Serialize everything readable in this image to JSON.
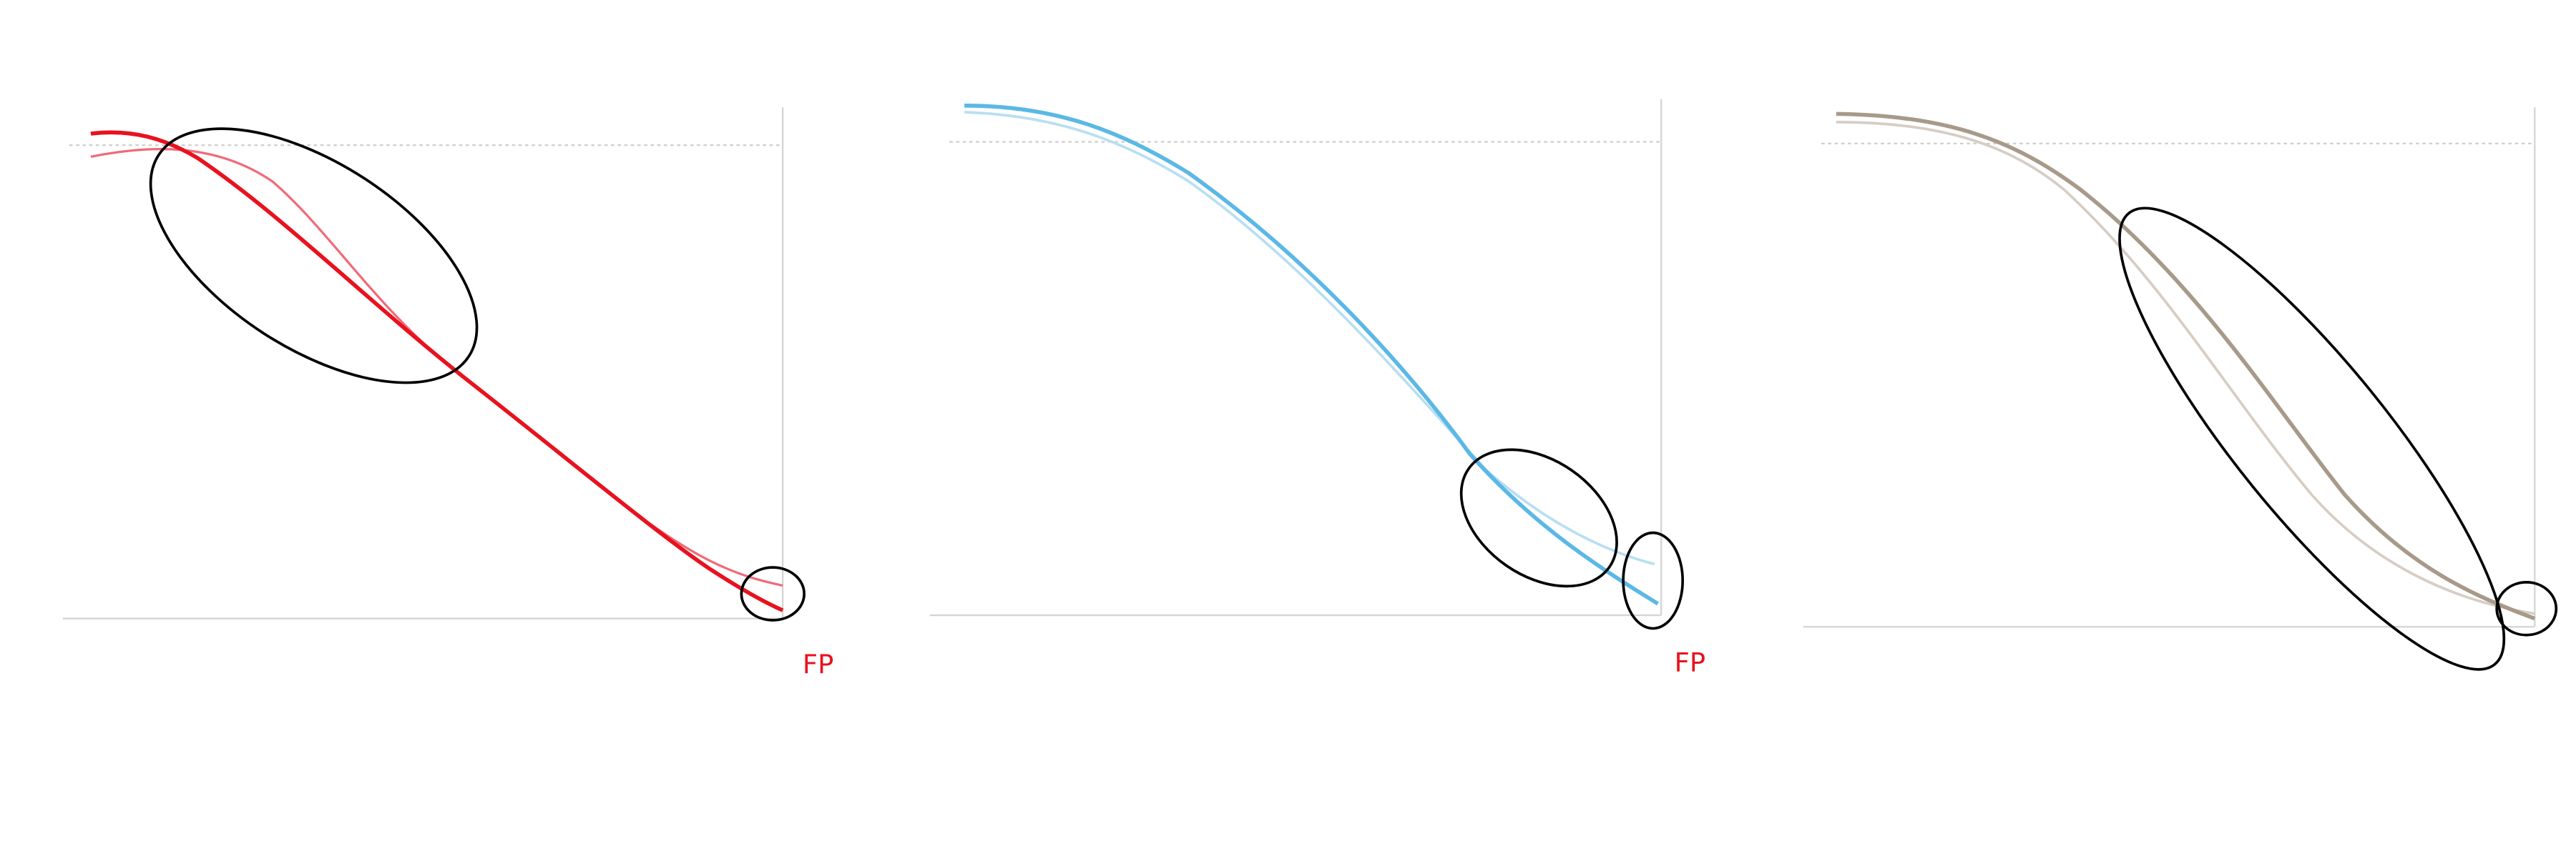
{
  "panels": [
    {
      "annotation": "FP"
    },
    {
      "annotation": "FP"
    }
  ]
}
